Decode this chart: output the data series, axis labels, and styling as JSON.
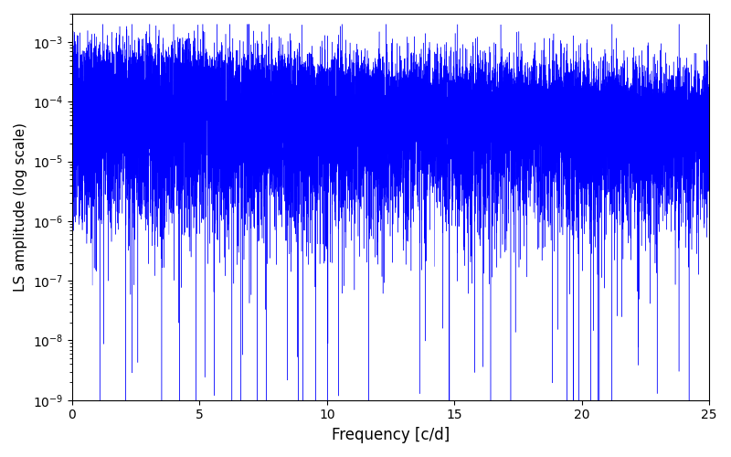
{
  "title": "",
  "xlabel": "Frequency [c/d]",
  "ylabel": "LS amplitude (log scale)",
  "xlim": [
    0,
    25
  ],
  "ylim": [
    1e-09,
    0.003
  ],
  "line_color": "blue",
  "line_width": 0.3,
  "freq_min": 0.0,
  "freq_max": 25.0,
  "n_points": 12000,
  "seed": 7,
  "figsize": [
    8.0,
    5.0
  ],
  "dpi": 100,
  "background_color": "#ffffff"
}
